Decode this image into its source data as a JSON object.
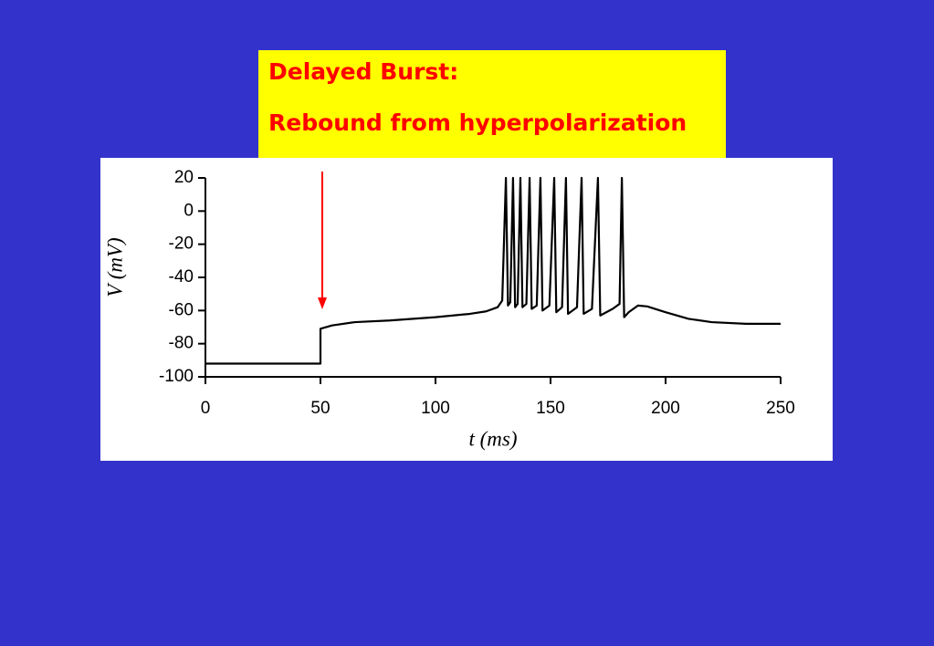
{
  "chart_data": {
    "type": "line",
    "title": "Delayed Burst:",
    "subtitle": "Rebound from hyperpolarization",
    "x_label": "t  (ms)",
    "y_label": "V (mV)",
    "x": [
      0,
      50,
      50,
      55,
      65,
      80,
      100,
      115,
      122,
      127,
      129,
      130.6,
      131.5,
      132.5,
      133.7,
      134.6,
      135.7,
      136.9,
      137.8,
      139.5,
      140.9,
      141.8,
      144,
      145.6,
      146.5,
      149.5,
      151.6,
      152.5,
      155,
      156.7,
      157.6,
      161.5,
      163.5,
      164.4,
      168,
      170.6,
      171.6,
      177,
      180,
      181,
      182,
      184,
      188,
      192,
      200,
      210,
      220,
      235,
      250
    ],
    "values": [
      -92,
      -92,
      -71,
      -69,
      -67,
      -66,
      -64,
      -62,
      -60.5,
      -58,
      -54,
      20,
      -57,
      -55,
      20,
      -58,
      -56,
      20,
      -58,
      -56,
      20,
      -59,
      -57,
      20,
      -60,
      -57,
      20,
      -61,
      -58,
      20,
      -62,
      -58,
      20,
      -62,
      -59,
      20,
      -63,
      -59,
      -56,
      20,
      -64,
      -61,
      -57,
      -57.5,
      -61,
      -65,
      -67,
      -68,
      -68
    ],
    "color": "#000000",
    "xlim": [
      0,
      250
    ],
    "xticks": [
      0,
      50,
      100,
      150,
      200,
      250
    ],
    "ylim": [
      -100,
      20
    ],
    "yticks": [
      20,
      0,
      -20,
      -40,
      -60,
      -80,
      -100
    ]
  }
}
